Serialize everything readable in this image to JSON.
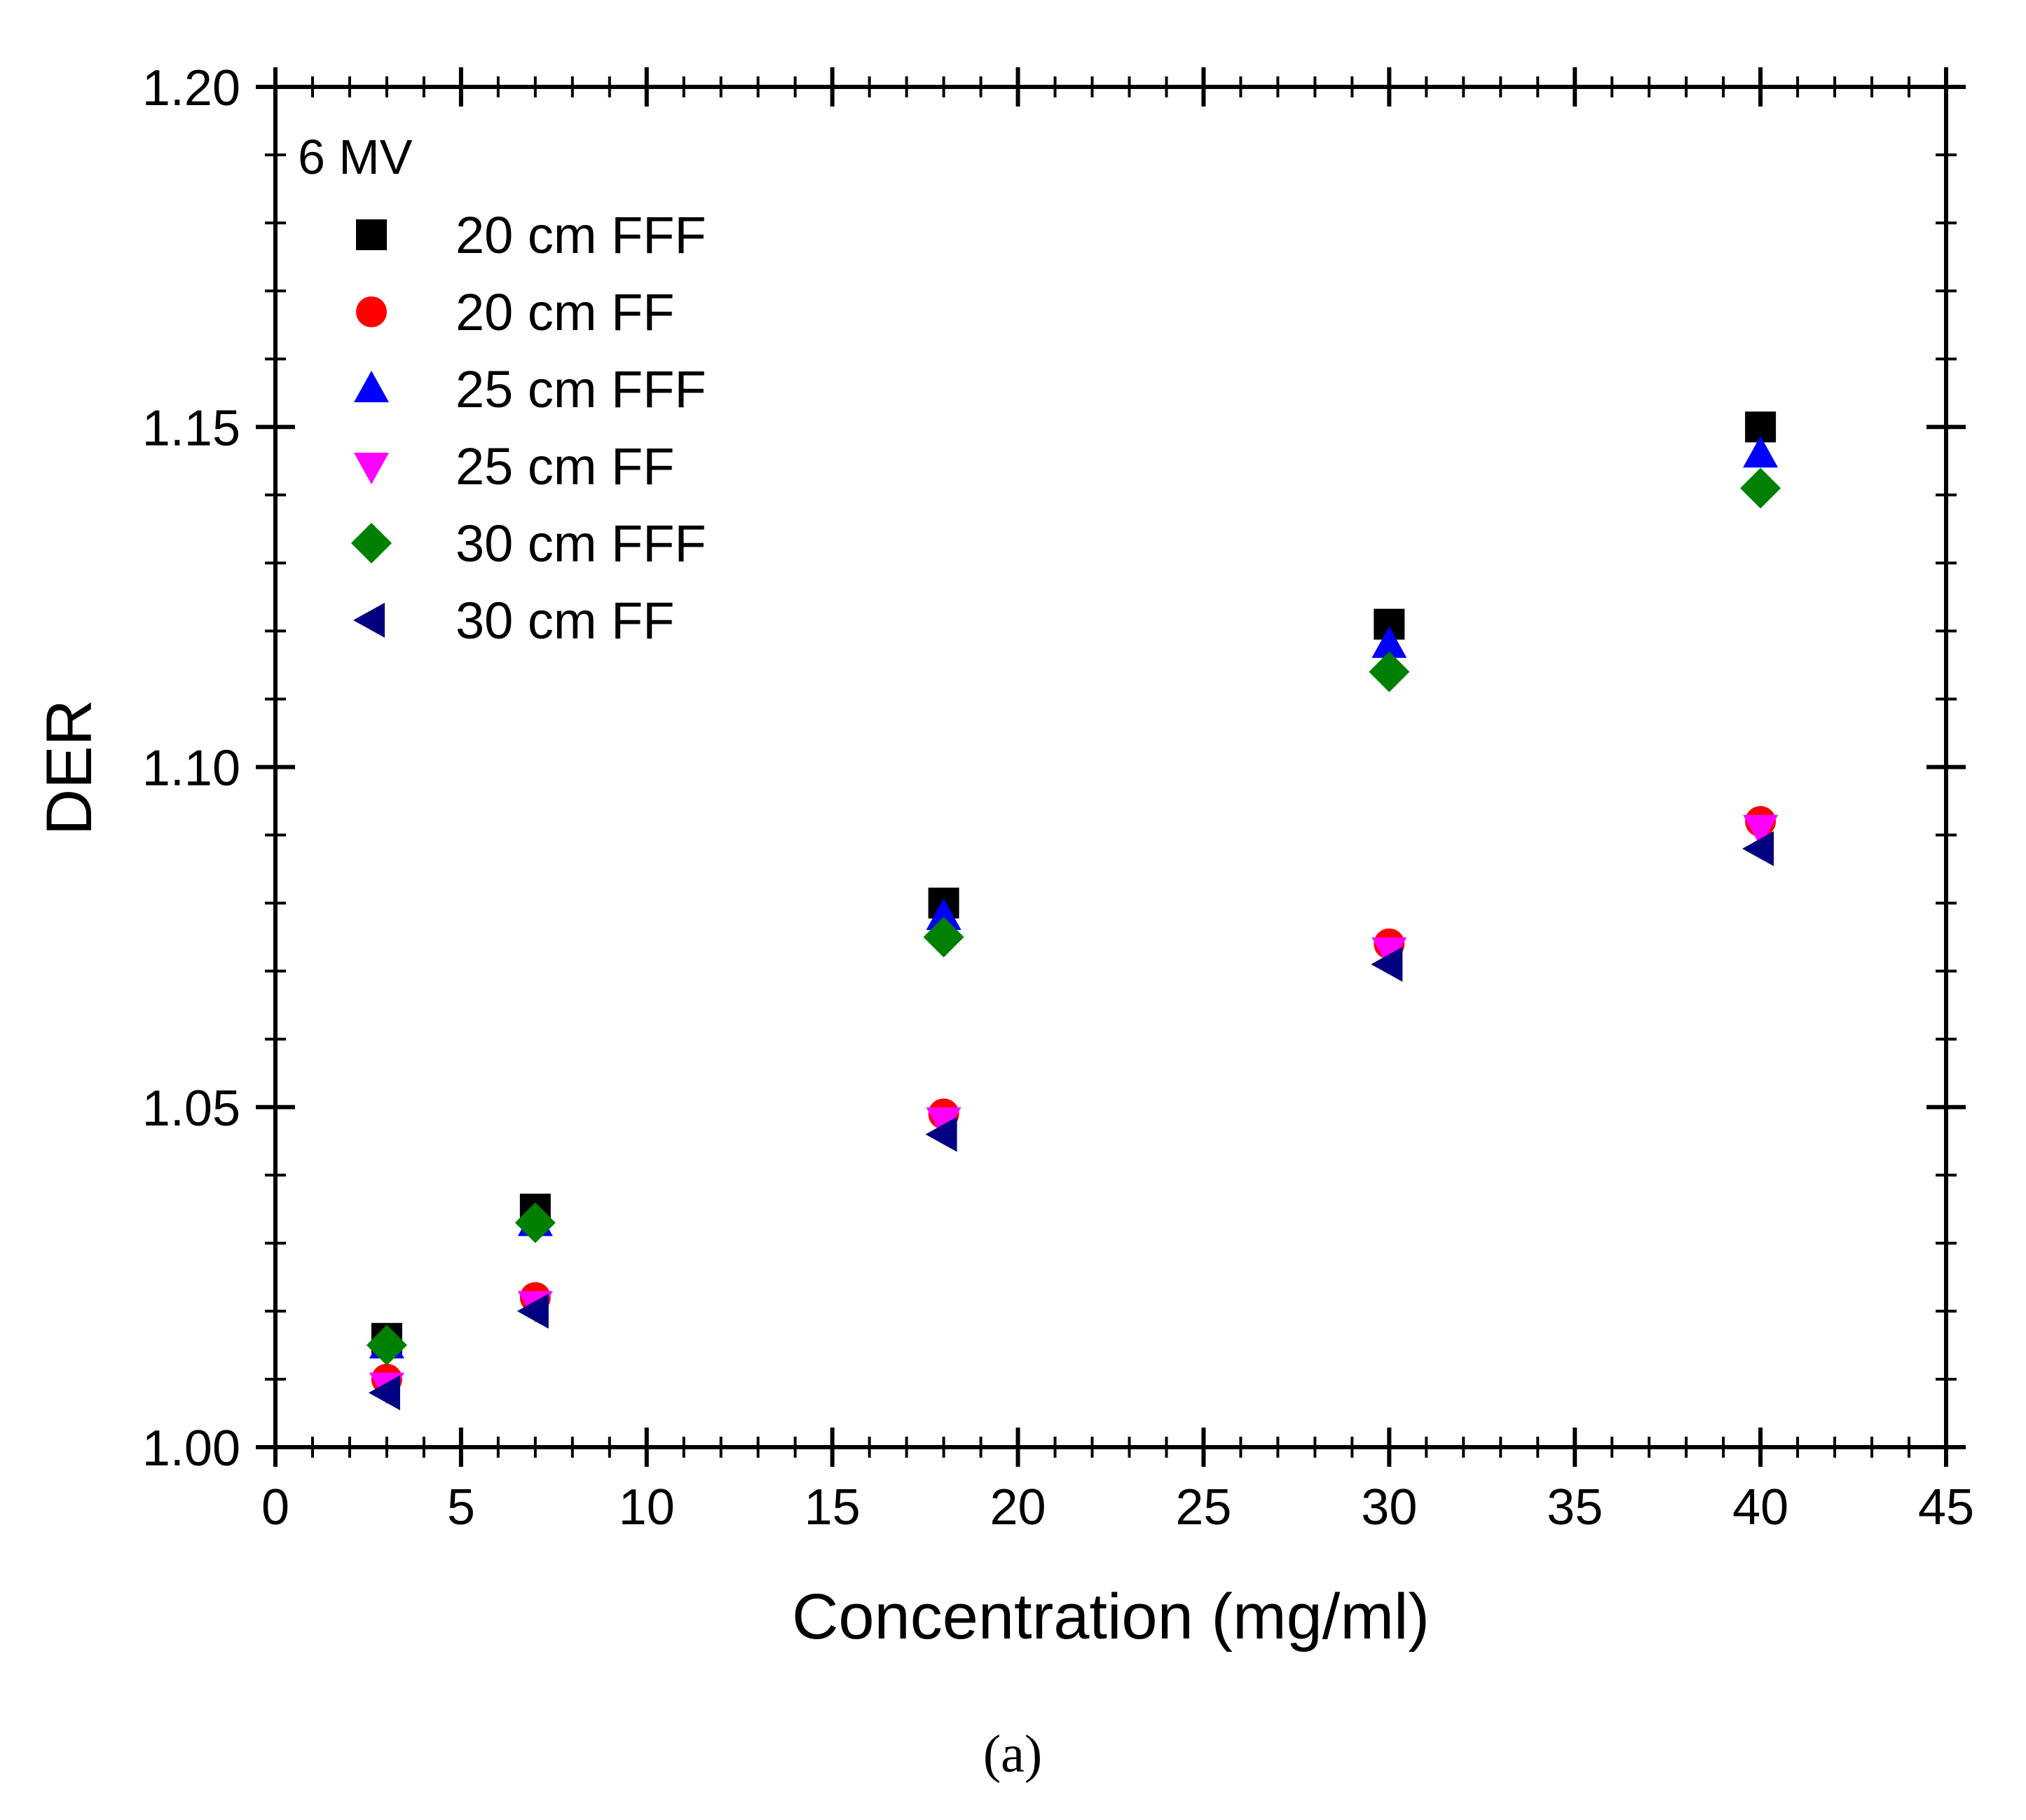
{
  "chart_data": {
    "type": "scatter",
    "title": "",
    "annotation": "6 MV",
    "xlabel": "Concentration (mg/ml)",
    "ylabel": "DER",
    "xlim": [
      0,
      45
    ],
    "ylim": [
      1.0,
      1.2
    ],
    "x_ticks": [
      0,
      5,
      10,
      15,
      20,
      25,
      30,
      35,
      40,
      45
    ],
    "x_tick_labels": [
      "0",
      "5",
      "10",
      "15",
      "20",
      "25",
      "30",
      "35",
      "40",
      "45"
    ],
    "y_ticks": [
      1.0,
      1.05,
      1.1,
      1.15,
      1.2
    ],
    "y_tick_labels": [
      "1.00",
      "1.05",
      "1.10",
      "1.15",
      "1.20"
    ],
    "grid": false,
    "legend_position": "top-left",
    "series": [
      {
        "name": "20 cm FFF",
        "marker": "square",
        "color": "#000000",
        "points": [
          [
            3,
            1.016
          ],
          [
            7,
            1.035
          ],
          [
            18,
            1.08
          ],
          [
            30,
            1.121
          ],
          [
            40,
            1.15
          ]
        ]
      },
      {
        "name": "20 cm FF",
        "marker": "circle",
        "color": "#ff0000",
        "points": [
          [
            3,
            1.01
          ],
          [
            7,
            1.022
          ],
          [
            18,
            1.049
          ],
          [
            30,
            1.074
          ],
          [
            40,
            1.092
          ]
        ]
      },
      {
        "name": "25 cm FFF",
        "marker": "triangle-up",
        "color": "#0000ff",
        "points": [
          [
            3,
            1.015
          ],
          [
            7,
            1.033
          ],
          [
            18,
            1.078
          ],
          [
            30,
            1.118
          ],
          [
            40,
            1.146
          ]
        ]
      },
      {
        "name": "25 cm FF",
        "marker": "triangle-down",
        "color": "#ff00ff",
        "points": [
          [
            3,
            1.009
          ],
          [
            7,
            1.021
          ],
          [
            18,
            1.048
          ],
          [
            30,
            1.073
          ],
          [
            40,
            1.091
          ]
        ]
      },
      {
        "name": "30 cm FFF",
        "marker": "diamond",
        "color": "#008000",
        "points": [
          [
            3,
            1.015
          ],
          [
            7,
            1.033
          ],
          [
            18,
            1.075
          ],
          [
            30,
            1.114
          ],
          [
            40,
            1.141
          ]
        ]
      },
      {
        "name": "30 cm FF",
        "marker": "triangle-left",
        "color": "#000080",
        "points": [
          [
            3,
            1.008
          ],
          [
            7,
            1.02
          ],
          [
            18,
            1.046
          ],
          [
            30,
            1.071
          ],
          [
            40,
            1.088
          ]
        ]
      }
    ]
  },
  "caption": "(a)"
}
